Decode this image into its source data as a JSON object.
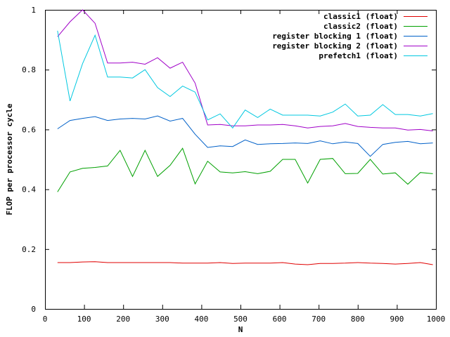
{
  "chart_data": {
    "type": "line",
    "title": "",
    "xlabel": "N",
    "ylabel": "FLOP per processor cycle",
    "xlim": [
      0,
      1000
    ],
    "ylim": [
      0,
      1
    ],
    "xticks": [
      0,
      100,
      200,
      300,
      400,
      500,
      600,
      700,
      800,
      900,
      1000
    ],
    "yticks": [
      0,
      0.2,
      0.4,
      0.6,
      0.8,
      1
    ],
    "ytick_labels": [
      "0",
      "0.2",
      "0.4",
      "0.6",
      "0.8",
      "1"
    ],
    "grid": false,
    "legend_position": "top-right",
    "x": [
      32,
      64,
      96,
      128,
      160,
      192,
      224,
      256,
      288,
      320,
      352,
      384,
      416,
      448,
      480,
      512,
      544,
      576,
      608,
      640,
      672,
      704,
      736,
      768,
      800,
      832,
      864,
      896,
      928,
      960,
      992
    ],
    "series": [
      {
        "name": "classic1 (float)",
        "color": "#e00000",
        "values": [
          0.155,
          0.155,
          0.157,
          0.158,
          0.155,
          0.155,
          0.155,
          0.155,
          0.155,
          0.155,
          0.153,
          0.153,
          0.153,
          0.155,
          0.152,
          0.153,
          0.153,
          0.153,
          0.155,
          0.15,
          0.148,
          0.152,
          0.152,
          0.153,
          0.155,
          0.153,
          0.152,
          0.15,
          0.152,
          0.155,
          0.148
        ]
      },
      {
        "name": "classic2 (float)",
        "color": "#00a000",
        "values": [
          0.391,
          0.458,
          0.47,
          0.473,
          0.478,
          0.53,
          0.443,
          0.53,
          0.443,
          0.48,
          0.537,
          0.418,
          0.494,
          0.458,
          0.455,
          0.459,
          0.452,
          0.46,
          0.5,
          0.5,
          0.421,
          0.5,
          0.503,
          0.452,
          0.453,
          0.5,
          0.451,
          0.455,
          0.417,
          0.456,
          0.452
        ]
      },
      {
        "name": "register blocking 1 (float)",
        "color": "#0060c8",
        "values": [
          0.602,
          0.63,
          0.637,
          0.643,
          0.63,
          0.635,
          0.637,
          0.635,
          0.645,
          0.628,
          0.637,
          0.584,
          0.54,
          0.545,
          0.543,
          0.565,
          0.55,
          0.552,
          0.553,
          0.555,
          0.553,
          0.562,
          0.552,
          0.558,
          0.553,
          0.51,
          0.55,
          0.557,
          0.56,
          0.552,
          0.555
        ]
      },
      {
        "name": "register blocking 2 (float)",
        "color": "#a000c8",
        "values": [
          0.91,
          0.96,
          1.0,
          0.955,
          0.822,
          0.822,
          0.825,
          0.818,
          0.84,
          0.805,
          0.825,
          0.755,
          0.615,
          0.617,
          0.612,
          0.612,
          0.615,
          0.615,
          0.617,
          0.612,
          0.605,
          0.61,
          0.612,
          0.62,
          0.61,
          0.607,
          0.605,
          0.605,
          0.598,
          0.6,
          0.595
        ]
      },
      {
        "name": "prefetch1 (float)",
        "color": "#00c8e0",
        "values": [
          0.93,
          0.695,
          0.82,
          0.915,
          0.775,
          0.775,
          0.772,
          0.8,
          0.74,
          0.71,
          0.745,
          0.725,
          0.632,
          0.652,
          0.605,
          0.665,
          0.64,
          0.668,
          0.648,
          0.648,
          0.648,
          0.645,
          0.658,
          0.685,
          0.645,
          0.648,
          0.683,
          0.65,
          0.65,
          0.645,
          0.653
        ]
      }
    ]
  }
}
